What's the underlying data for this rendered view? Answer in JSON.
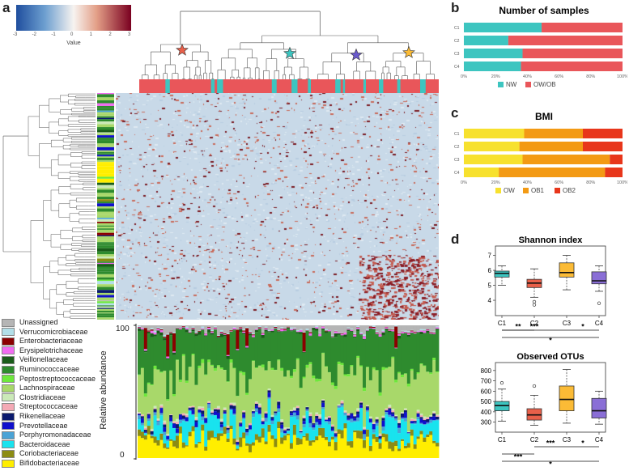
{
  "panels": {
    "a": "a",
    "b": "b",
    "c": "c",
    "d": "d"
  },
  "colorkey": {
    "label": "Value",
    "ticks": [
      "-3",
      "-2",
      "-1",
      "0",
      "1",
      "2",
      "3"
    ],
    "colors": [
      "#1f4e9e",
      "#f7f3f0",
      "#7a0020"
    ]
  },
  "group_colors": {
    "NW": "#3dc5c0",
    "OW/OB": "#e9565a"
  },
  "families": [
    {
      "name": "Unassigned",
      "color": "#b5b5b5"
    },
    {
      "name": "Verrucomicrobiaceae",
      "color": "#b2dfe8"
    },
    {
      "name": "Enterobacteriaceae",
      "color": "#8b0000"
    },
    {
      "name": "Erysipelotrichaceae",
      "color": "#f06cf0"
    },
    {
      "name": "Veillonellaceae",
      "color": "#1a5c1a"
    },
    {
      "name": "Ruminococcaceae",
      "color": "#2e8b2e"
    },
    {
      "name": "Peptostreptococcaceae",
      "color": "#6ee83c"
    },
    {
      "name": "Lachnospiraceae",
      "color": "#a8d86a"
    },
    {
      "name": "Clostridiaceae",
      "color": "#cbe9b8"
    },
    {
      "name": "Streptococcaceae",
      "color": "#f4a9b5"
    },
    {
      "name": "Rikenellaceae",
      "color": "#0a1a6e"
    },
    {
      "name": "Prevotellaceae",
      "color": "#1010cc"
    },
    {
      "name": "Porphyromonadaceae",
      "color": "#4aa3d6"
    },
    {
      "name": "Bacteroidaceae",
      "color": "#19e3ee"
    },
    {
      "name": "Coriobacteriaceae",
      "color": "#8c8c14"
    },
    {
      "name": "Bifidobacteriaceae",
      "color": "#ffee00"
    }
  ],
  "abundance": {
    "ylabel": "Relative abundance",
    "ymin": "0",
    "ymax": "100"
  },
  "chart_data": [
    {
      "type": "bar",
      "title": "Number of samples",
      "categories": [
        "C1",
        "C2",
        "C3",
        "C4"
      ],
      "series": [
        {
          "name": "NW",
          "values": [
            49,
            28,
            37,
            36
          ]
        },
        {
          "name": "OW/OB",
          "values": [
            51,
            72,
            63,
            64
          ]
        }
      ],
      "xticks": [
        "0%",
        "20%",
        "40%",
        "60%",
        "80%",
        "100%"
      ],
      "colors": [
        "#3dc5c0",
        "#e9565a"
      ],
      "legend": "bottom"
    },
    {
      "type": "bar",
      "title": "BMI",
      "categories": [
        "C1",
        "C2",
        "C3",
        "C4"
      ],
      "series": [
        {
          "name": "OW",
          "values": [
            38,
            35,
            37,
            22
          ]
        },
        {
          "name": "OB1",
          "values": [
            37,
            40,
            55,
            67
          ]
        },
        {
          "name": "OB2",
          "values": [
            25,
            25,
            8,
            11
          ]
        }
      ],
      "xticks": [
        "0%",
        "20%",
        "40%",
        "60%",
        "80%",
        "100%"
      ],
      "colors": [
        "#f7e12e",
        "#f39a14",
        "#e8361b"
      ],
      "legend": "bottom"
    },
    {
      "type": "box",
      "title": "Shannon index",
      "categories": [
        "C1",
        "C2",
        "C3",
        "C4"
      ],
      "ylim": [
        3.3,
        7.3
      ],
      "yticks": [
        "4",
        "5",
        "6",
        "7"
      ],
      "boxes": [
        {
          "min": 5.0,
          "q1": 5.55,
          "median": 5.8,
          "q3": 5.95,
          "max": 6.3,
          "outliers": []
        },
        {
          "min": 4.2,
          "q1": 4.85,
          "median": 5.15,
          "q3": 5.4,
          "max": 6.1,
          "outliers": [
            3.7,
            3.9
          ]
        },
        {
          "min": 4.7,
          "q1": 5.55,
          "median": 5.85,
          "q3": 6.5,
          "max": 7.0,
          "outliers": []
        },
        {
          "min": 4.6,
          "q1": 5.1,
          "median": 5.3,
          "q3": 5.9,
          "max": 6.3,
          "outliers": [
            3.8
          ]
        }
      ],
      "colors": [
        "#3dc5c0",
        "#e9604a",
        "#fbbb36",
        "#8a6ed6"
      ],
      "significance": [
        {
          "level": 0,
          "from": "C1",
          "to": "C3",
          "label": "***"
        },
        {
          "level": 0,
          "from": "C3",
          "to": "C4",
          "label": "*"
        },
        {
          "level": 0,
          "from": "C1",
          "to": "C2",
          "label": "**"
        },
        {
          "level": 1,
          "from": "C1",
          "to": "C4",
          "label": "*"
        }
      ]
    },
    {
      "type": "box",
      "title": "Observed OTUs",
      "categories": [
        "C1",
        "C2",
        "C3",
        "C4"
      ],
      "ylim": [
        250,
        830
      ],
      "yticks": [
        "300",
        "400",
        "500",
        "600",
        "700",
        "800"
      ],
      "boxes": [
        {
          "min": 310,
          "q1": 410,
          "median": 460,
          "q3": 500,
          "max": 620,
          "outliers": [
            680
          ]
        },
        {
          "min": 270,
          "q1": 320,
          "median": 370,
          "q3": 430,
          "max": 560,
          "outliers": [
            650
          ]
        },
        {
          "min": 290,
          "q1": 410,
          "median": 520,
          "q3": 650,
          "max": 810,
          "outliers": []
        },
        {
          "min": 280,
          "q1": 340,
          "median": 410,
          "q3": 530,
          "max": 600,
          "outliers": []
        }
      ],
      "colors": [
        "#3dc5c0",
        "#e9604a",
        "#fbbb36",
        "#8a6ed6"
      ],
      "significance": [
        {
          "level": 0,
          "from": "C2",
          "to": "C3",
          "label": "***"
        },
        {
          "level": 0,
          "from": "C3",
          "to": "C4",
          "label": "*"
        },
        {
          "level": 1,
          "from": "C1",
          "to": "C2",
          "label": "***"
        },
        {
          "level": 2,
          "from": "C1",
          "to": "C4",
          "label": "*"
        }
      ]
    }
  ]
}
